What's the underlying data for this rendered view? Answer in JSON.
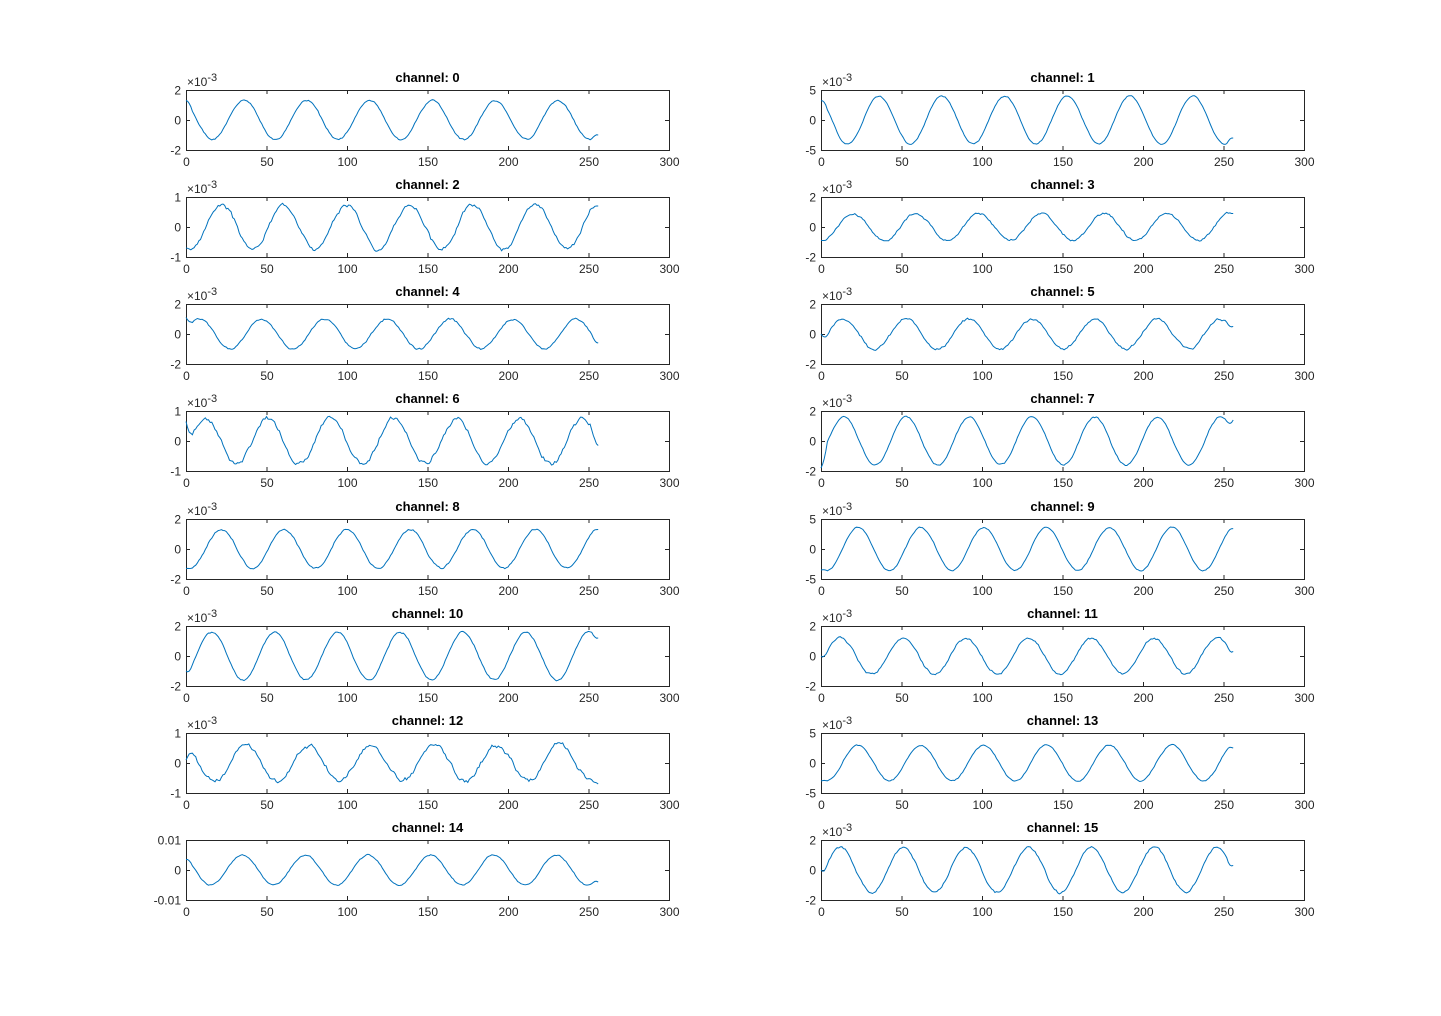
{
  "figure": {
    "background": "#ffffff",
    "line_color": "#0072bd",
    "axis_color": "#262626"
  },
  "chart_data": [
    {
      "type": "line",
      "title": "channel: 0",
      "x_range": [
        0,
        256
      ],
      "xlim": [
        0,
        300
      ],
      "xticks": [
        "0",
        "50",
        "100",
        "150",
        "200",
        "250",
        "300"
      ],
      "ylim": [
        -2,
        2
      ],
      "yticks": [
        "-2",
        "0",
        "2"
      ],
      "exponent_label": "×10-3",
      "series": [
        {
          "amplitude": 1.3,
          "period": 39,
          "phase_x": 36,
          "start_value": 1.3,
          "end_value": -1.0,
          "noise": 0.05
        }
      ]
    },
    {
      "type": "line",
      "title": "channel: 1",
      "x_range": [
        0,
        256
      ],
      "xlim": [
        0,
        300
      ],
      "xticks": [
        "0",
        "50",
        "100",
        "150",
        "200",
        "250",
        "300"
      ],
      "ylim": [
        -5,
        5
      ],
      "yticks": [
        "-5",
        "0",
        "5"
      ],
      "exponent_label": "×10-3",
      "series": [
        {
          "amplitude": 4.0,
          "period": 39,
          "phase_x": 36,
          "start_value": 3.2,
          "end_value": -3.0,
          "noise": 0.1
        }
      ]
    },
    {
      "type": "line",
      "title": "channel: 2",
      "x_range": [
        0,
        256
      ],
      "xlim": [
        0,
        300
      ],
      "xticks": [
        "0",
        "50",
        "100",
        "150",
        "200",
        "250",
        "300"
      ],
      "ylim": [
        -1,
        1
      ],
      "yticks": [
        "-1",
        "0",
        "1"
      ],
      "exponent_label": "×10-3",
      "series": [
        {
          "amplitude": 0.75,
          "period": 39,
          "phase_x": 22,
          "start_value": -0.7,
          "end_value": 0.7,
          "noise": 0.06
        }
      ]
    },
    {
      "type": "line",
      "title": "channel: 3",
      "x_range": [
        0,
        256
      ],
      "xlim": [
        0,
        300
      ],
      "xticks": [
        "0",
        "50",
        "100",
        "150",
        "200",
        "250",
        "300"
      ],
      "ylim": [
        -2,
        2
      ],
      "yticks": [
        "-2",
        "0",
        "2"
      ],
      "exponent_label": "×10-3",
      "series": [
        {
          "amplitude": 0.9,
          "period": 39,
          "phase_x": 20,
          "start_value": -0.9,
          "end_value": 0.9,
          "noise": 0.07
        }
      ]
    },
    {
      "type": "line",
      "title": "channel: 4",
      "x_range": [
        0,
        256
      ],
      "xlim": [
        0,
        300
      ],
      "xticks": [
        "0",
        "50",
        "100",
        "150",
        "200",
        "250",
        "300"
      ],
      "ylim": [
        -2,
        2
      ],
      "yticks": [
        "-2",
        "0",
        "2"
      ],
      "exponent_label": "×10-3",
      "series": [
        {
          "amplitude": 1.0,
          "period": 39,
          "phase_x": 47,
          "start_value": 1.1,
          "end_value": -0.6,
          "noise": 0.06
        }
      ]
    },
    {
      "type": "line",
      "title": "channel: 5",
      "x_range": [
        0,
        256
      ],
      "xlim": [
        0,
        300
      ],
      "xticks": [
        "0",
        "50",
        "100",
        "150",
        "200",
        "250",
        "300"
      ],
      "ylim": [
        -2,
        2
      ],
      "yticks": [
        "-2",
        "0",
        "2"
      ],
      "exponent_label": "×10-3",
      "series": [
        {
          "amplitude": 1.0,
          "period": 39,
          "phase_x": 14,
          "start_value": 0.0,
          "end_value": 0.5,
          "noise": 0.08
        }
      ]
    },
    {
      "type": "line",
      "title": "channel: 6",
      "x_range": [
        0,
        256
      ],
      "xlim": [
        0,
        300
      ],
      "xticks": [
        "0",
        "50",
        "100",
        "150",
        "200",
        "250",
        "300"
      ],
      "ylim": [
        -1,
        1
      ],
      "yticks": [
        "-1",
        "0",
        "1"
      ],
      "exponent_label": "×10-3",
      "series": [
        {
          "amplitude": 0.75,
          "period": 39,
          "phase_x": 12,
          "start_value": 0.65,
          "end_value": -0.15,
          "noise": 0.07
        }
      ]
    },
    {
      "type": "line",
      "title": "channel: 7",
      "x_range": [
        0,
        256
      ],
      "xlim": [
        0,
        300
      ],
      "xticks": [
        "0",
        "50",
        "100",
        "150",
        "200",
        "250",
        "300"
      ],
      "ylim": [
        -2,
        2
      ],
      "yticks": [
        "-2",
        "0",
        "2"
      ],
      "exponent_label": "×10-3",
      "series": [
        {
          "amplitude": 1.6,
          "period": 39,
          "phase_x": 14,
          "start_value": -1.8,
          "end_value": 1.4,
          "noise": 0.05
        }
      ]
    },
    {
      "type": "line",
      "title": "channel: 8",
      "x_range": [
        0,
        256
      ],
      "xlim": [
        0,
        300
      ],
      "xticks": [
        "0",
        "50",
        "100",
        "150",
        "200",
        "250",
        "300"
      ],
      "ylim": [
        -2,
        2
      ],
      "yticks": [
        "-2",
        "0",
        "2"
      ],
      "exponent_label": "×10-3",
      "series": [
        {
          "amplitude": 1.3,
          "period": 39,
          "phase_x": 22,
          "start_value": -1.3,
          "end_value": 1.3,
          "noise": 0.06
        }
      ]
    },
    {
      "type": "line",
      "title": "channel: 9",
      "x_range": [
        0,
        256
      ],
      "xlim": [
        0,
        300
      ],
      "xticks": [
        "0",
        "50",
        "100",
        "150",
        "200",
        "250",
        "300"
      ],
      "ylim": [
        -5,
        5
      ],
      "yticks": [
        "-5",
        "0",
        "5"
      ],
      "exponent_label": "×10-3",
      "series": [
        {
          "amplitude": 3.6,
          "period": 39,
          "phase_x": 23,
          "start_value": -3.5,
          "end_value": 3.4,
          "noise": 0.1
        }
      ]
    },
    {
      "type": "line",
      "title": "channel: 10",
      "x_range": [
        0,
        256
      ],
      "xlim": [
        0,
        300
      ],
      "xticks": [
        "0",
        "50",
        "100",
        "150",
        "200",
        "250",
        "300"
      ],
      "ylim": [
        -2,
        2
      ],
      "yticks": [
        "-2",
        "0",
        "2"
      ],
      "exponent_label": "×10-3",
      "series": [
        {
          "amplitude": 1.6,
          "period": 39,
          "phase_x": 16,
          "start_value": -1.0,
          "end_value": 1.2,
          "noise": 0.05
        }
      ]
    },
    {
      "type": "line",
      "title": "channel: 11",
      "x_range": [
        0,
        256
      ],
      "xlim": [
        0,
        300
      ],
      "xticks": [
        "0",
        "50",
        "100",
        "150",
        "200",
        "250",
        "300"
      ],
      "ylim": [
        -2,
        2
      ],
      "yticks": [
        "-2",
        "0",
        "2"
      ],
      "exponent_label": "×10-3",
      "series": [
        {
          "amplitude": 1.2,
          "period": 39,
          "phase_x": 12,
          "start_value": 0.0,
          "end_value": 0.3,
          "noise": 0.07
        }
      ]
    },
    {
      "type": "line",
      "title": "channel: 12",
      "x_range": [
        0,
        256
      ],
      "xlim": [
        0,
        300
      ],
      "xticks": [
        "0",
        "50",
        "100",
        "150",
        "200",
        "250",
        "300"
      ],
      "ylim": [
        -1,
        1
      ],
      "yticks": [
        "-1",
        "0",
        "1"
      ],
      "exponent_label": "×10-3",
      "series": [
        {
          "amplitude": 0.6,
          "period": 39,
          "phase_x": 37,
          "start_value": 0.1,
          "end_value": -0.7,
          "noise": 0.07
        }
      ]
    },
    {
      "type": "line",
      "title": "channel: 13",
      "x_range": [
        0,
        256
      ],
      "xlim": [
        0,
        300
      ],
      "xticks": [
        "0",
        "50",
        "100",
        "150",
        "200",
        "250",
        "300"
      ],
      "ylim": [
        -5,
        5
      ],
      "yticks": [
        "-5",
        "0",
        "5"
      ],
      "exponent_label": "×10-3",
      "series": [
        {
          "amplitude": 3.0,
          "period": 39,
          "phase_x": 23,
          "start_value": -3.0,
          "end_value": 2.5,
          "noise": 0.1
        }
      ]
    },
    {
      "type": "line",
      "title": "channel: 14",
      "x_range": [
        0,
        256
      ],
      "xlim": [
        0,
        300
      ],
      "xticks": [
        "0",
        "50",
        "100",
        "150",
        "200",
        "250",
        "300"
      ],
      "ylim": [
        -0.01,
        0.01
      ],
      "yticks": [
        "-0.01",
        "0",
        "0.01"
      ],
      "exponent_label": "",
      "series": [
        {
          "amplitude": 0.005,
          "period": 39,
          "phase_x": 35,
          "start_value": 0.0035,
          "end_value": -0.004,
          "noise": 0.0002
        }
      ]
    },
    {
      "type": "line",
      "title": "channel: 15",
      "x_range": [
        0,
        256
      ],
      "xlim": [
        0,
        300
      ],
      "xticks": [
        "0",
        "50",
        "100",
        "150",
        "200",
        "250",
        "300"
      ],
      "ylim": [
        -2,
        2
      ],
      "yticks": [
        "-2",
        "0",
        "2"
      ],
      "exponent_label": "×10-3",
      "series": [
        {
          "amplitude": 1.5,
          "period": 39,
          "phase_x": 12,
          "start_value": 0.0,
          "end_value": 0.3,
          "noise": 0.07
        }
      ]
    }
  ]
}
